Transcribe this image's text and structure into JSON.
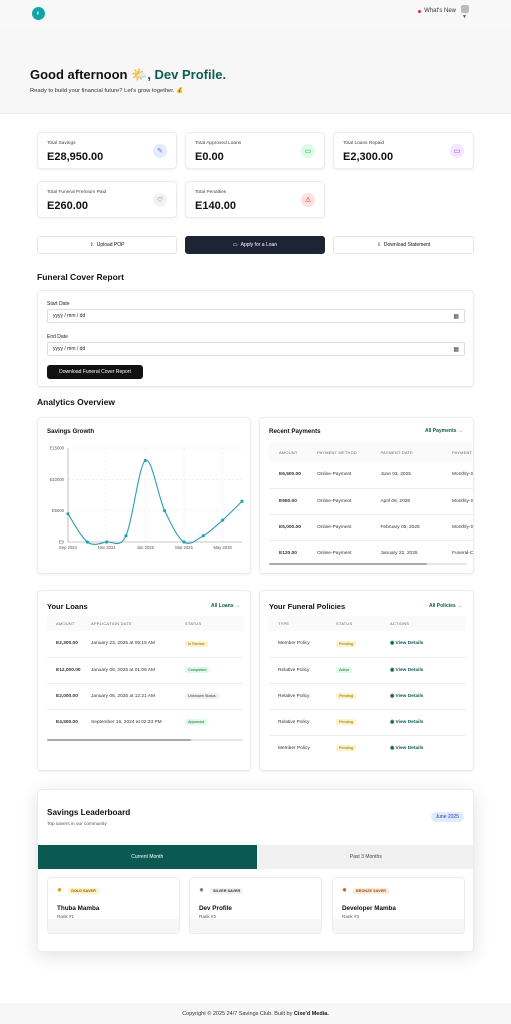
{
  "header": {
    "whats_new": "What's New"
  },
  "hero": {
    "greeting_prefix": "Good afternoon",
    "sun_emoji": "🌤️",
    "name": ", Dev Profile.",
    "subtitle": "Ready to build your financial future? Let's grow together. 💰"
  },
  "stats": [
    {
      "label": "Total Savings",
      "value": "E28,950.00",
      "icon": "piggy-bank-icon",
      "color": "#e3ecff"
    },
    {
      "label": "Total Approved Loans",
      "value": "E0.00",
      "icon": "credit-card-icon",
      "color": "#dcfce7"
    },
    {
      "label": "Total Loans Repaid",
      "value": "E2,300.00",
      "icon": "screen-icon",
      "color": "#f3e6ff"
    },
    {
      "label": "Total Funeral Premium Paid",
      "value": "E260.00",
      "icon": "heart-icon",
      "color": "#f3f3f3"
    },
    {
      "label": "Total Penalties",
      "value": "E140.00",
      "icon": "penalty-icon",
      "color": "#fde2e2"
    }
  ],
  "actions": {
    "upload": "Upload POP",
    "apply": "Apply for a Loan",
    "download": "Download Statement"
  },
  "funeral_report": {
    "title": "Funeral Cover Report",
    "start_label": "Start Date",
    "end_label": "End Date",
    "start_value": "yyyy / mm / dd",
    "end_value": "yyyy / mm / dd",
    "button": "Download Funeral Cover Report"
  },
  "analytics": {
    "title": "Analytics Overview"
  },
  "savings_chart": {
    "title": "Savings Growth"
  },
  "chart_data": {
    "type": "line",
    "title": "Savings Growth",
    "x_ticks": [
      "Sep 2024",
      "Nov 2024",
      "Jan 2025",
      "Mar 2025",
      "May 2025"
    ],
    "y_ticks": [
      "E0",
      "E5000",
      "E10000",
      "E15000"
    ],
    "ylim": [
      0,
      15000
    ],
    "x": [
      "Sep 2024",
      "Oct 2024",
      "Nov 2024",
      "Dec 2024",
      "Jan 2025",
      "Feb 2025",
      "Mar 2025",
      "Apr 2025",
      "May 2025",
      "Jun 2025"
    ],
    "values": [
      4500,
      0,
      0,
      1000,
      13000,
      5000,
      0,
      1000,
      3500,
      6500
    ],
    "color": "#2a9fb4",
    "grid": true
  },
  "payments": {
    "title": "Recent Payments",
    "link": "All Payments",
    "headers": [
      "AMOUNT",
      "PAYMENT METHOD",
      "PAYMENT DATE",
      "PAYMENT REASON"
    ],
    "rows": [
      [
        "E6,500.00",
        "Online-Payment",
        "June 03, 2025",
        "Monthly-Savi"
      ],
      [
        "E950.00",
        "Online-Payment",
        "April 06, 2026",
        "Monthly-Savi"
      ],
      [
        "E5,000.00",
        "Online-Payment",
        "February 05, 2026",
        "Monthly-Savi"
      ],
      [
        "E120.00",
        "Online-Payment",
        "January 22, 2025",
        "Funeral-Cove"
      ]
    ]
  },
  "loans": {
    "title": "Your Loans",
    "link": "All Loans",
    "headers": [
      "AMOUNT",
      "APPLICATION DATE",
      "STATUS"
    ],
    "rows": [
      [
        "E2,300.00",
        "January 23, 2025 at 09:15 AM",
        "In Review"
      ],
      [
        "E12,000.00",
        "January 06, 2025 at 01:06 AM",
        "Completed"
      ],
      [
        "E2,000.00",
        "January 06, 2025 at 12:21 AM",
        "Unknown Status"
      ],
      [
        "E4,500.00",
        "September 16, 2024 at 02:33 PM",
        "Approved"
      ]
    ]
  },
  "policies": {
    "title": "Your Funeral Policies",
    "link": "All Policies",
    "headers": [
      "TYPE",
      "STATUS",
      "ACTIONS"
    ],
    "rows": [
      [
        "Member Policy",
        "Pending",
        "View Details"
      ],
      [
        "Relative Policy",
        "Active",
        "View Details"
      ],
      [
        "Relative Policy",
        "Pending",
        "View Details"
      ],
      [
        "Relative Policy",
        "Pending",
        "View Details"
      ],
      [
        "Member Policy",
        "Pending",
        "View Details"
      ]
    ]
  },
  "leaderboard": {
    "title": "Savings Leaderboard",
    "subtitle": "Top savers in our community",
    "month_badge": "June 2025",
    "tab_current": "Current Month",
    "tab_past": "Past 3 Months",
    "savers": [
      {
        "badge": "GOLD SAVER",
        "name": "Thuba Mamba",
        "rank": "Rank #1",
        "badge_bg": "#fef3c7",
        "badge_fg": "#8a6100"
      },
      {
        "badge": "SILVER SAVER",
        "name": "Dev Profile",
        "rank": "Rank #2",
        "badge_bg": "#f1f1f1",
        "badge_fg": "#333333"
      },
      {
        "badge": "BRONZE SAVER",
        "name": "Developer Mamba",
        "rank": "Rank #3",
        "badge_bg": "#fde9d6",
        "badge_fg": "#9a4d10"
      }
    ]
  },
  "footer": {
    "text": "Copyright © 2025 24/7 Savings Club. Built by",
    "brand": "Cixe'd Media."
  }
}
